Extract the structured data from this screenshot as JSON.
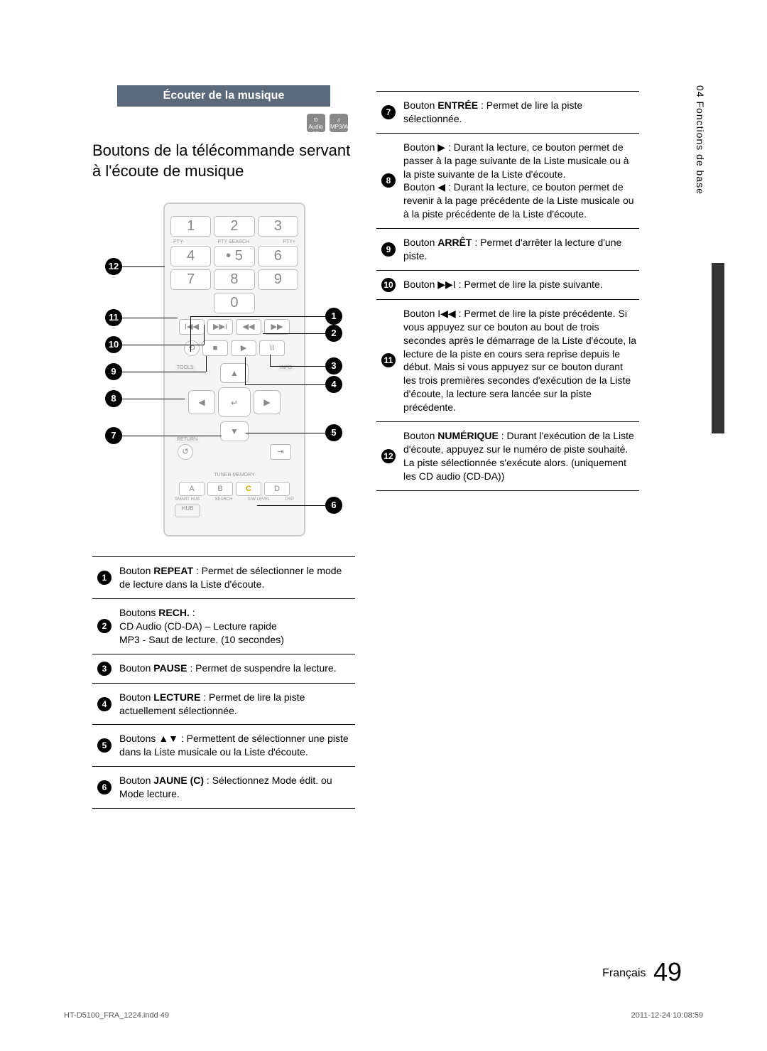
{
  "sideTab": "04   Fonctions de base",
  "sectionHeader": "Écouter de la musique",
  "iconLabels": {
    "audiocd": "Audio CD",
    "mp3wma": "MP3/WMA"
  },
  "subtitle": "Boutons de la télécommande servant à l'écoute de musique",
  "remote": {
    "numbers": [
      "1",
      "2",
      "3",
      "4",
      "• 5",
      "6",
      "7",
      "8",
      "9",
      "0"
    ],
    "ptyLabels": [
      "PTY-",
      "PTY SEARCH",
      "PTY+"
    ],
    "toolsLabel": "TOOLS",
    "infoLabel": "INFO",
    "returnLabel": "RETURN",
    "tunerLabel": "TUNER MEMORY",
    "abcd": [
      "A",
      "B",
      "C",
      "D"
    ],
    "bottomLabels": [
      "SMART HUB",
      "SEARCH",
      "S/W LEVEL",
      "DSP"
    ],
    "hub": "HUB"
  },
  "symbols": {
    "play": "▶",
    "left": "◀",
    "up": "▲",
    "down": "▼",
    "next": "▶▶I",
    "prev": "I◀◀",
    "ff": "▶▶",
    "rw": "◀◀",
    "stop": "■",
    "pause": "II",
    "enter": "↵",
    "return": "↺"
  },
  "leftTable": [
    {
      "n": "1",
      "html": "Bouton <b>REPEAT</b> : Permet de sélectionner le mode de lecture dans la Liste d'écoute."
    },
    {
      "n": "2",
      "html": "Boutons <b>RECH.</b> :<br>CD Audio (CD-DA) – Lecture rapide<br>MP3 - Saut de lecture. (10 secondes)"
    },
    {
      "n": "3",
      "html": "Bouton <b>PAUSE</b> :  Permet de suspendre la lecture."
    },
    {
      "n": "4",
      "html": "Bouton <b>LECTURE</b> : Permet de lire la piste actuellement sélectionnée."
    },
    {
      "n": "5",
      "html": "Boutons <span class='sym'>▲▼</span> : Permettent de sélectionner une piste dans la Liste musicale ou la Liste d'écoute."
    },
    {
      "n": "6",
      "html": "Bouton <b>JAUNE (C)</b> : Sélectionnez Mode édit. ou Mode lecture."
    }
  ],
  "rightTable": [
    {
      "n": "7",
      "html": "Bouton <b>ENTRÉE</b> : Permet de lire la piste sélectionnée."
    },
    {
      "n": "8",
      "html": "Bouton <span class='sym'>▶</span> : Durant la lecture, ce bouton permet de passer à la page suivante de la Liste musicale ou à la piste suivante de la Liste d'écoute.<br>Bouton <span class='sym'>◀</span> : Durant la lecture, ce bouton permet de revenir à la page précédente de la Liste musicale ou à la piste précédente de la Liste d'écoute."
    },
    {
      "n": "9",
      "html": "Bouton <b>ARRÊT</b> : Permet d'arrêter la lecture d'une piste."
    },
    {
      "n": "10",
      "html": "Bouton <span class='sym'>▶▶I</span> : Permet de lire la piste suivante."
    },
    {
      "n": "11",
      "html": "Bouton <span class='sym'>I◀◀</span> : Permet de lire la piste précédente. Si vous appuyez sur ce bouton au bout de trois secondes après le démarrage de la Liste d'écoute, la lecture de la piste en cours sera reprise depuis le début. Mais si vous appuyez sur ce bouton durant les trois premières secondes d'exécution de la Liste d'écoute, la lecture sera lancée sur la piste précédente."
    },
    {
      "n": "12",
      "html": "Bouton <b>NUMÉRIQUE</b> : Durant l'exécution de la Liste d'écoute, appuyez sur le numéro de piste souhaité. La piste sélectionnée s'exécute alors. (uniquement les CD audio (CD-DA))"
    }
  ],
  "footer": {
    "lang": "Français",
    "page": "49"
  },
  "printLine": {
    "file": "HT-D5100_FRA_1224.indd   49",
    "date": "2011-12-24   10:08:59"
  },
  "colors": {
    "headerBg": "#5a6a7a",
    "sidebarDark": "#333333"
  }
}
